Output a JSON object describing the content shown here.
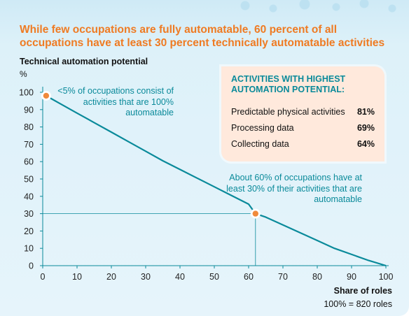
{
  "title": "While few occupations are fully automatable, 60 percent of all occupations have at least 30 percent technically automatable activities",
  "chart_data": {
    "type": "line",
    "ylabel": "Technical automation potential",
    "yunit": "%",
    "xlabel": "Share of roles",
    "xnote": "100% = 820 roles",
    "xlim": [
      0,
      100
    ],
    "ylim": [
      0,
      100
    ],
    "xticks": [
      0,
      10,
      20,
      30,
      40,
      50,
      60,
      70,
      80,
      90,
      100
    ],
    "yticks": [
      0,
      10,
      20,
      30,
      40,
      50,
      60,
      70,
      80,
      90,
      100
    ],
    "grid": false,
    "accent_color": "#0a8a9a",
    "marker_color": "#f08a3c",
    "series": [
      {
        "x": [
          0,
          1,
          5,
          10,
          15,
          20,
          25,
          30,
          35,
          40,
          45,
          50,
          55,
          60,
          62,
          65,
          70,
          75,
          80,
          85,
          90,
          95,
          100
        ],
        "y": [
          100,
          98,
          93.5,
          88,
          82.5,
          77,
          71.5,
          66,
          60.5,
          55.5,
          50.5,
          45.5,
          40.5,
          35.5,
          30,
          28,
          23.5,
          19,
          14.5,
          10,
          6.5,
          3,
          0
        ]
      }
    ],
    "highlight_points": [
      {
        "x": 1,
        "y": 98
      },
      {
        "x": 62,
        "y": 30
      }
    ],
    "annotations": [
      "<5% of occupations consist of activities that are 100% automatable",
      "About 60% of occupations have at least 30% of their activities that are automatable"
    ]
  },
  "box": {
    "title": "ACTIVITIES WITH HIGHEST AUTOMATION POTENTIAL:",
    "rows": [
      {
        "label": "Predictable physical activities",
        "value": "81%"
      },
      {
        "label": "Processing data",
        "value": "69%"
      },
      {
        "label": "Collecting data",
        "value": "64%"
      }
    ]
  }
}
